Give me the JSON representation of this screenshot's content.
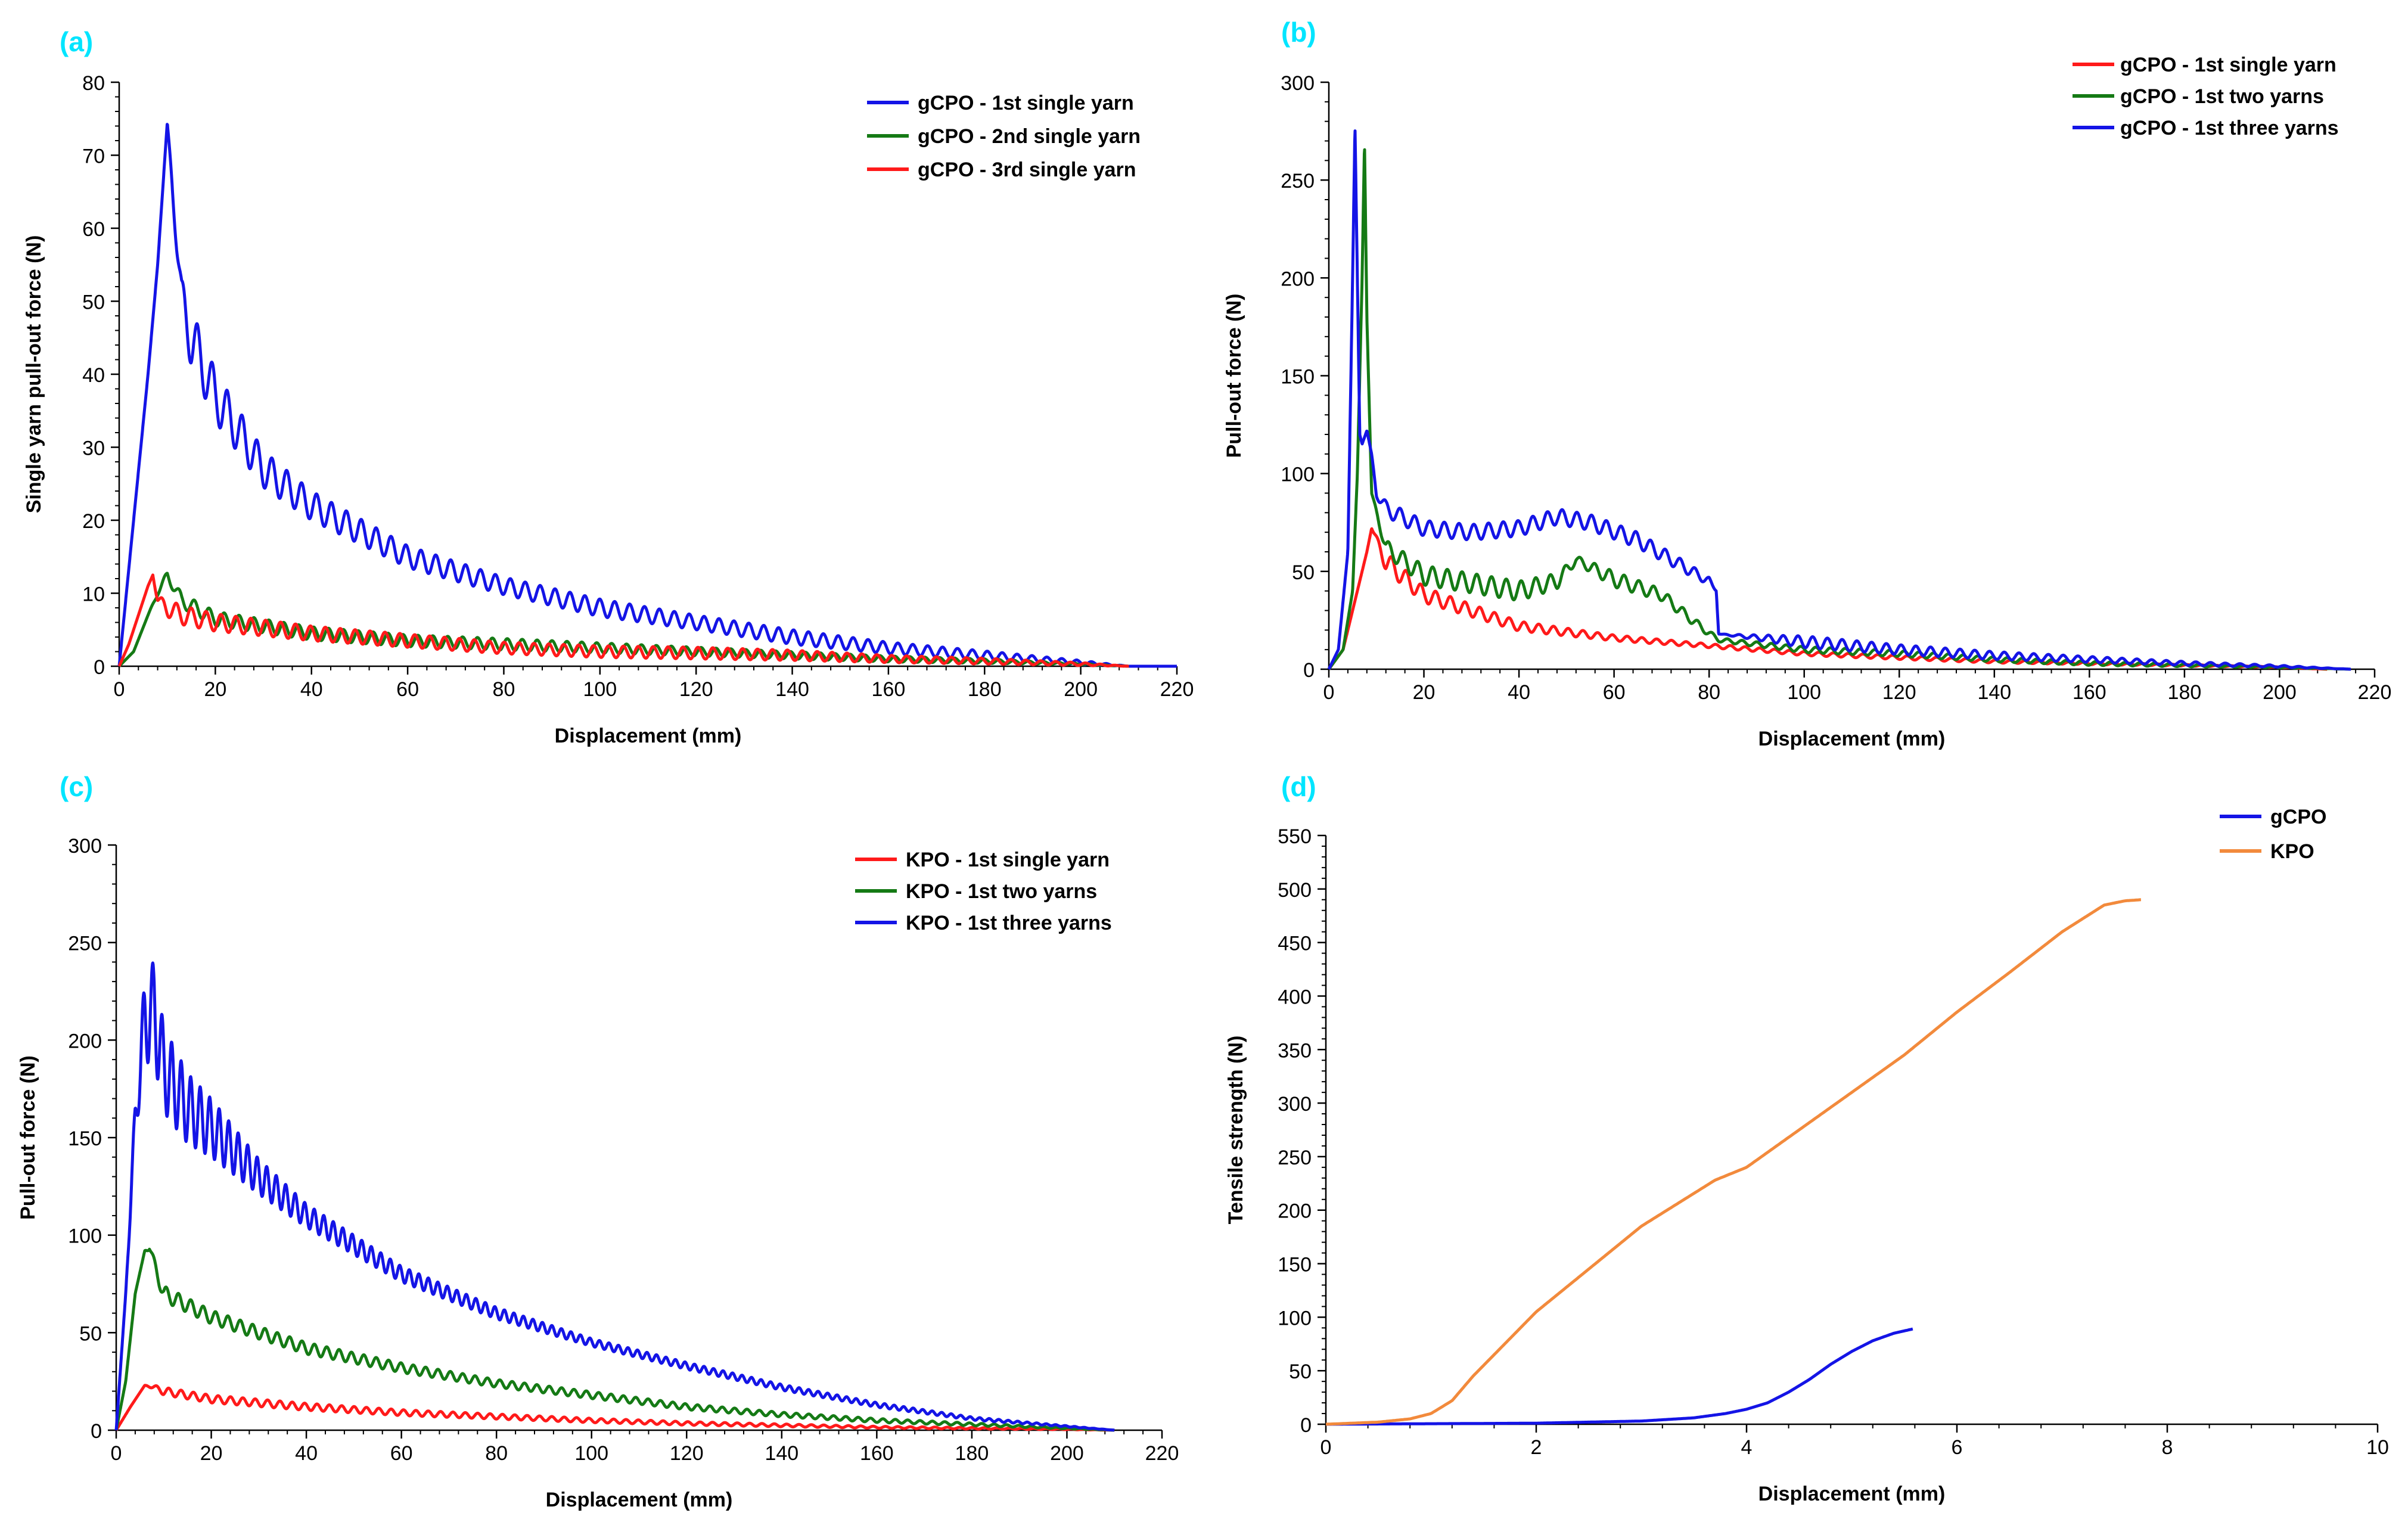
{
  "figure": {
    "panel_label_color": "#00e5ff",
    "colors": {
      "blue": "#1414e6",
      "green": "#157a15",
      "red": "#ff1a1a",
      "orange": "#f28a3c",
      "axis": "#000000"
    }
  },
  "chart_data": [
    {
      "id": "a",
      "panel_label": "(a)",
      "type": "line",
      "xlabel": "Displacement (mm)",
      "ylabel": "Single yarn pull-out force (N)",
      "xlim": [
        0,
        220
      ],
      "ylim": [
        0,
        80
      ],
      "xticks": [
        0,
        20,
        40,
        60,
        80,
        100,
        120,
        140,
        160,
        180,
        200,
        220
      ],
      "yticks": [
        0,
        10,
        20,
        30,
        40,
        50,
        60,
        70,
        80
      ],
      "legend_position": "top-right",
      "series": [
        {
          "name": "gCPO - 1st single yarn",
          "color": "#1414e6",
          "x": [
            0,
            3,
            6,
            8,
            10,
            13,
            15,
            20,
            30,
            40,
            60,
            80,
            100,
            120,
            140,
            160,
            180,
            200,
            210,
            220
          ],
          "y": [
            0,
            20,
            40,
            55,
            74.5,
            50,
            45,
            37,
            27,
            22,
            15,
            11,
            8,
            6,
            4,
            2.5,
            1.5,
            0.5,
            0,
            0
          ],
          "wiggle_amp": [
            0,
            0,
            0,
            0,
            0,
            3,
            4,
            3.5,
            2.5,
            2,
            1.5,
            1.2,
            1.2,
            1,
            1,
            0.8,
            0.6,
            0.3,
            0,
            0
          ],
          "wiggle_period": 3.1
        },
        {
          "name": "gCPO - 2nd single yarn",
          "color": "#157a15",
          "x": [
            0,
            3,
            6,
            8,
            10,
            13,
            20,
            40,
            60,
            80,
            100,
            120,
            140,
            160,
            180,
            200,
            210
          ],
          "y": [
            0,
            2,
            7,
            10,
            12.5,
            9,
            6.5,
            4.5,
            3.5,
            3,
            2.5,
            2,
            1.5,
            1,
            0.7,
            0.3,
            0
          ],
          "wiggle_amp": [
            0,
            0,
            0,
            0.3,
            0.6,
            1,
            1,
            0.9,
            0.8,
            0.8,
            0.7,
            0.6,
            0.5,
            0.4,
            0.3,
            0.1,
            0
          ],
          "wiggle_period": 3.1
        },
        {
          "name": "gCPO - 3rd single yarn",
          "color": "#ff1a1a",
          "x": [
            0,
            2,
            4,
            6,
            7,
            8,
            10,
            13,
            20,
            40,
            60,
            80,
            100,
            120,
            140,
            160,
            180,
            200,
            210
          ],
          "y": [
            0,
            3,
            7,
            11,
            12.5,
            9,
            8,
            7,
            6,
            4.5,
            3.5,
            2.5,
            2,
            1.8,
            1.5,
            1,
            0.7,
            0.3,
            0
          ],
          "wiggle_amp": [
            0,
            0,
            0,
            0,
            0,
            0.5,
            1.2,
            1.3,
            1.2,
            1,
            0.9,
            0.8,
            0.8,
            0.8,
            0.7,
            0.5,
            0.4,
            0.2,
            0
          ],
          "wiggle_period": 3.1
        }
      ]
    },
    {
      "id": "b",
      "panel_label": "(b)",
      "type": "line",
      "xlabel": "Displacement (mm)",
      "ylabel": "Pull-out force (N)",
      "xlim": [
        0,
        220
      ],
      "ylim": [
        0,
        300
      ],
      "xticks": [
        0,
        20,
        40,
        60,
        80,
        100,
        120,
        140,
        160,
        180,
        200,
        220
      ],
      "yticks": [
        0,
        50,
        100,
        150,
        200,
        250,
        300
      ],
      "legend_position": "top-right",
      "series": [
        {
          "name": "gCPO - 1st single yarn",
          "color": "#ff1a1a",
          "x": [
            0,
            3,
            6,
            8,
            9,
            12,
            20,
            40,
            60,
            80,
            100,
            120,
            140,
            160,
            180,
            200,
            210
          ],
          "y": [
            0,
            10,
            40,
            60,
            72,
            55,
            38,
            22,
            16,
            12,
            8,
            6,
            4,
            3,
            2,
            1,
            0
          ],
          "wiggle_amp": [
            0,
            0,
            0,
            0,
            0,
            5,
            4,
            2.5,
            1.5,
            1,
            1,
            1,
            0.8,
            0.6,
            0.4,
            0.2,
            0
          ],
          "wiggle_period": 3.1
        },
        {
          "name": "gCPO - 1st two yarns",
          "color": "#157a15",
          "x": [
            0,
            3,
            5,
            6,
            7,
            7.5,
            8,
            9,
            12,
            20,
            40,
            48,
            52,
            60,
            70,
            78,
            82,
            100,
            120,
            140,
            160,
            180,
            200,
            215
          ],
          "y": [
            0,
            10,
            40,
            100,
            200,
            270,
            180,
            90,
            62,
            48,
            40,
            45,
            56,
            46,
            38,
            22,
            15,
            10,
            8,
            5,
            3,
            2,
            1,
            0
          ],
          "wiggle_amp": [
            0,
            0,
            0,
            0,
            0,
            0,
            0,
            0,
            4,
            5,
            5,
            4,
            2,
            4,
            3,
            2,
            1,
            1.5,
            1.5,
            1.2,
            1,
            0.7,
            0.3,
            0
          ],
          "wiggle_period": 3.1
        },
        {
          "name": "gCPO - 1st three yarns",
          "color": "#1414e6",
          "x": [
            0,
            2,
            4,
            5,
            5.5,
            6,
            6.5,
            7,
            8,
            9,
            10,
            12,
            20,
            30,
            40,
            48,
            55,
            65,
            75,
            80,
            81.5,
            82,
            100,
            120,
            140,
            160,
            180,
            200,
            215
          ],
          "y": [
            0,
            10,
            60,
            200,
            278,
            200,
            120,
            115,
            122,
            110,
            90,
            82,
            72,
            70,
            72,
            78,
            75,
            66,
            52,
            45,
            40,
            18,
            14,
            10,
            7,
            5,
            3,
            1.5,
            0
          ],
          "wiggle_amp": [
            0,
            0,
            0,
            0,
            0,
            0,
            0,
            0,
            0,
            0,
            2,
            4,
            4,
            4,
            4,
            4,
            4,
            4,
            3,
            2,
            0,
            0,
            3,
            2.5,
            2,
            1.5,
            1,
            0.5,
            0
          ],
          "wiggle_period": 3.1
        }
      ]
    },
    {
      "id": "c",
      "panel_label": "(c)",
      "type": "line",
      "xlabel": "Displacement (mm)",
      "ylabel": "Pull-out force (N)",
      "xlim": [
        0,
        220
      ],
      "ylim": [
        0,
        300
      ],
      "xticks": [
        0,
        20,
        40,
        60,
        80,
        100,
        120,
        140,
        160,
        180,
        200,
        220
      ],
      "yticks": [
        0,
        50,
        100,
        150,
        200,
        250,
        300
      ],
      "legend_position": "top-right",
      "series": [
        {
          "name": "KPO - 1st single yarn",
          "color": "#ff1a1a",
          "x": [
            0,
            3,
            6,
            8,
            10,
            20,
            40,
            60,
            80,
            100,
            120,
            140,
            160,
            180,
            200,
            210
          ],
          "y": [
            0,
            12,
            23,
            22,
            20,
            16,
            12,
            9,
            7,
            5,
            3.5,
            2.5,
            1.5,
            1,
            0.5,
            0
          ],
          "wiggle_amp": [
            0,
            0,
            0,
            1,
            2,
            2,
            1.8,
            1.5,
            1.3,
            1.1,
            0.9,
            0.7,
            0.5,
            0.4,
            0.2,
            0
          ],
          "wiggle_period": 2.6
        },
        {
          "name": "KPO - 1st  two yarns",
          "color": "#157a15",
          "x": [
            0,
            2,
            4,
            6,
            7,
            8,
            10,
            20,
            40,
            60,
            80,
            100,
            120,
            140,
            160,
            180,
            200,
            210
          ],
          "y": [
            0,
            25,
            70,
            92,
            94,
            85,
            70,
            58,
            42,
            32,
            24,
            18,
            12,
            8,
            5,
            3,
            1,
            0
          ],
          "wiggle_amp": [
            0,
            0,
            0,
            0,
            2,
            3,
            4,
            3.5,
            3,
            2.5,
            2,
            1.8,
            1.5,
            1.2,
            1,
            0.7,
            0.3,
            0
          ],
          "wiggle_period": 2.6
        },
        {
          "name": "KPO - 1st three yarns",
          "color": "#1414e6",
          "x": [
            0,
            2,
            4,
            6,
            8,
            10,
            15,
            20,
            30,
            40,
            60,
            80,
            100,
            120,
            140,
            160,
            180,
            200,
            210
          ],
          "y": [
            0,
            70,
            160,
            210,
            215,
            185,
            165,
            155,
            130,
            110,
            80,
            60,
            45,
            33,
            22,
            13,
            6,
            2,
            0
          ],
          "wiggle_amp": [
            0,
            0,
            10,
            22,
            26,
            22,
            18,
            15,
            9,
            6,
            4,
            3,
            2,
            1.8,
            1.5,
            1.2,
            0.8,
            0.3,
            0
          ],
          "wiggle_period": 2.0
        }
      ]
    },
    {
      "id": "d",
      "panel_label": "(d)",
      "type": "line",
      "xlabel": "Displacement (mm)",
      "ylabel": "Tensile strength (N)",
      "xlim": [
        0,
        10
      ],
      "ylim": [
        0,
        550
      ],
      "xticks": [
        0,
        2,
        4,
        6,
        8,
        10
      ],
      "yticks": [
        0,
        50,
        100,
        150,
        200,
        250,
        300,
        350,
        400,
        450,
        500,
        550
      ],
      "legend_position": "top-right",
      "series": [
        {
          "name": "gCPO",
          "color": "#1414e6",
          "x": [
            0,
            1,
            2,
            3,
            3.5,
            3.8,
            4,
            4.2,
            4.4,
            4.6,
            4.8,
            5.0,
            5.2,
            5.4,
            5.58
          ],
          "y": [
            0,
            0.5,
            1,
            3,
            6,
            10,
            14,
            20,
            30,
            42,
            56,
            68,
            78,
            85,
            89
          ],
          "wiggle_amp": [],
          "wiggle_period": 0
        },
        {
          "name": "KPO",
          "color": "#f28a3c",
          "x": [
            0,
            0.5,
            0.8,
            1.0,
            1.2,
            1.4,
            2,
            3,
            3.7,
            4.0,
            4.5,
            5,
            5.5,
            6,
            6.5,
            7,
            7.4,
            7.6,
            7.75
          ],
          "y": [
            0,
            2,
            5,
            10,
            22,
            45,
            105,
            185,
            228,
            240,
            275,
            310,
            345,
            385,
            422,
            460,
            485,
            489,
            490
          ],
          "wiggle_amp": [],
          "wiggle_period": 0
        }
      ]
    }
  ]
}
